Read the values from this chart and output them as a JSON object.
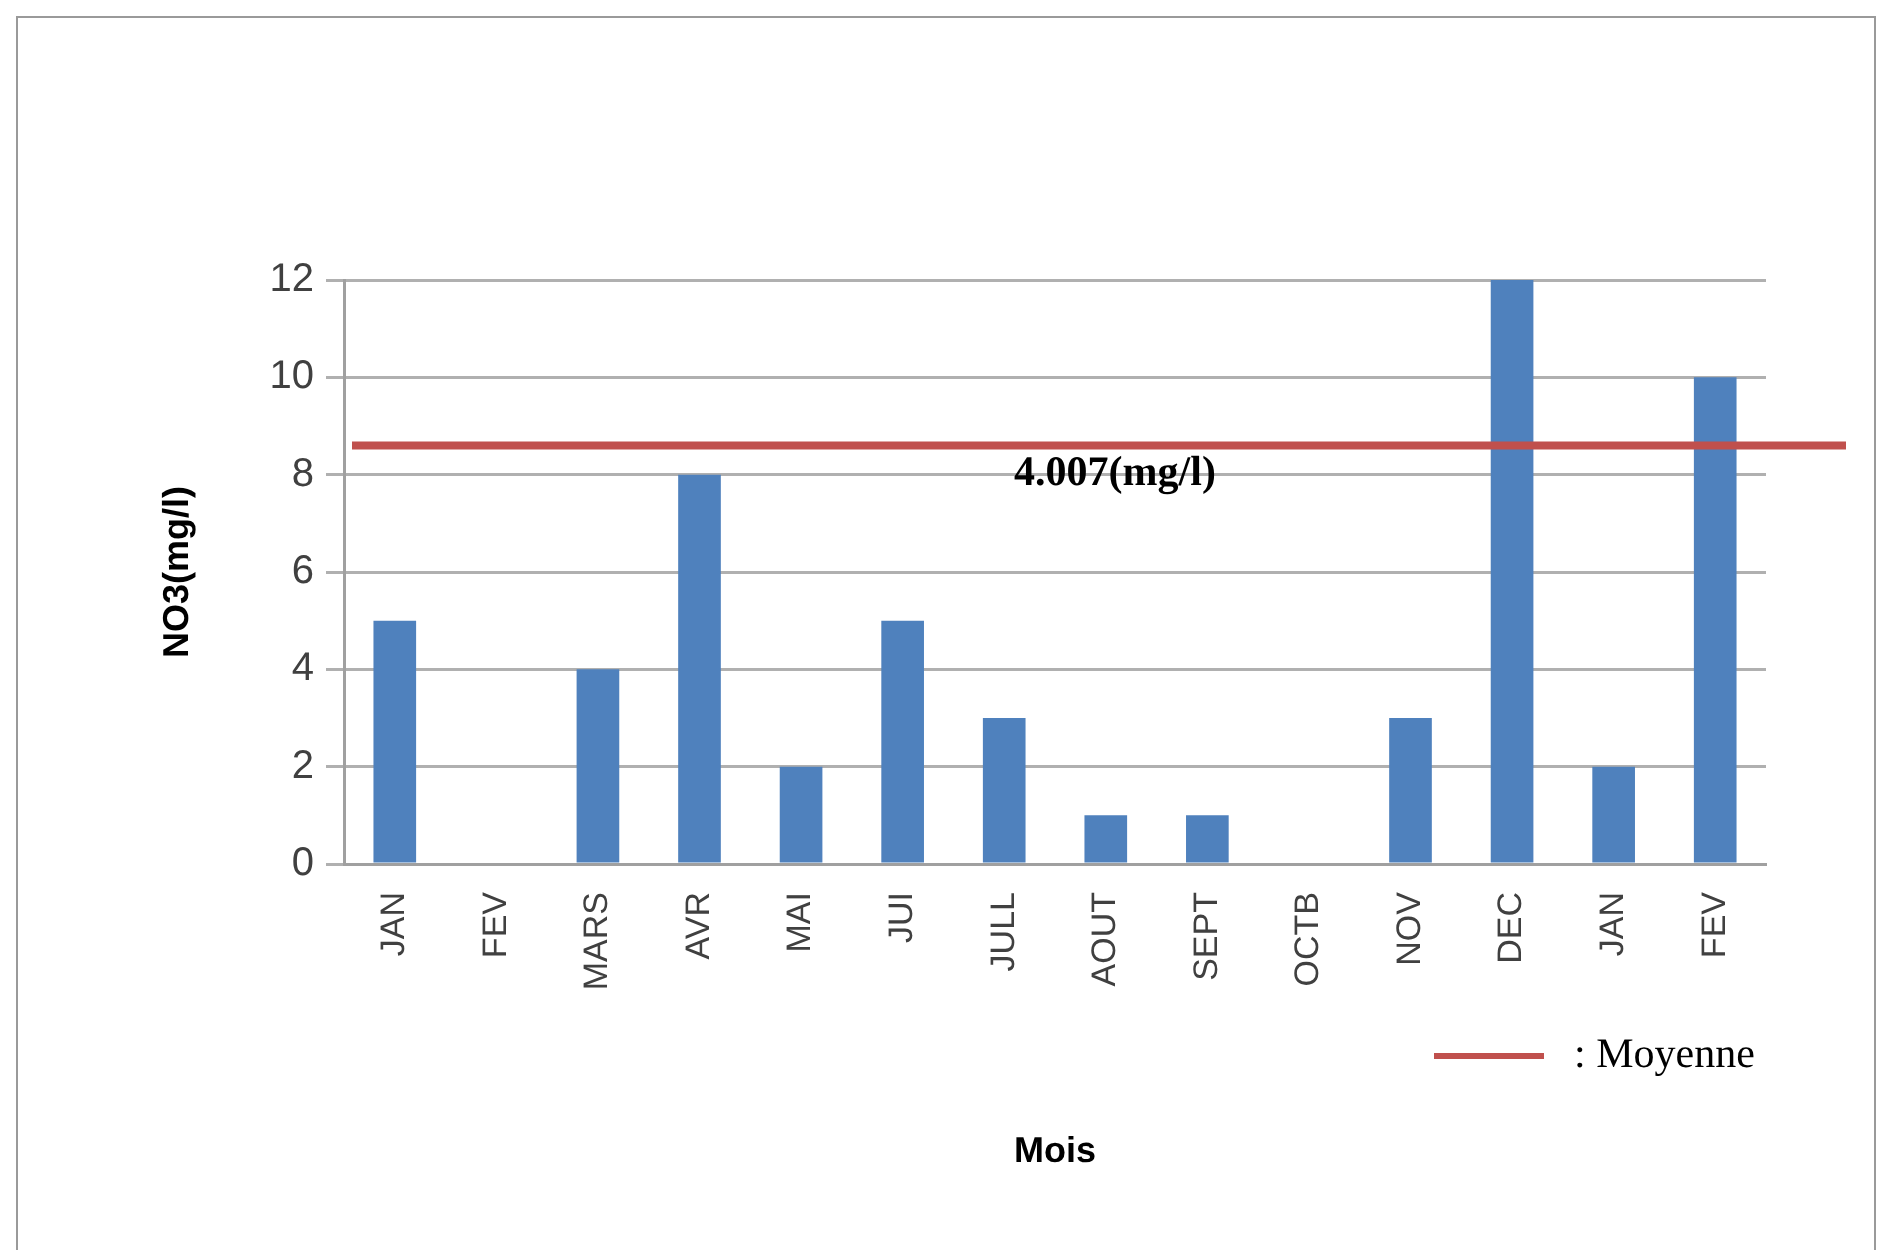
{
  "chart_data": {
    "type": "bar",
    "xlabel": "Mois",
    "ylabel": "NO3(mg/l)",
    "categories": [
      "JAN",
      "FEV",
      "MARS",
      "AVR",
      "MAI",
      "JUI",
      "JULL",
      "AOUT",
      "SEPT",
      "OCTB",
      "NOV",
      "DEC",
      "JAN",
      "FEV"
    ],
    "values": [
      5,
      0,
      4,
      8,
      2,
      5,
      3,
      1,
      1,
      0,
      3,
      12,
      2,
      10
    ],
    "color": "#4f81bd",
    "ylim": [
      0,
      12
    ],
    "yticks": [
      0,
      2,
      4,
      6,
      8,
      10,
      12
    ],
    "grid": "y",
    "ref_lines": [
      {
        "axis": "y",
        "value": 8.6,
        "label": ": Moyenne",
        "color": "#c0504d"
      }
    ],
    "annotations": [
      {
        "text": "4.007(mg/l)",
        "y": 8.6
      }
    ],
    "legend": "bottom right"
  }
}
